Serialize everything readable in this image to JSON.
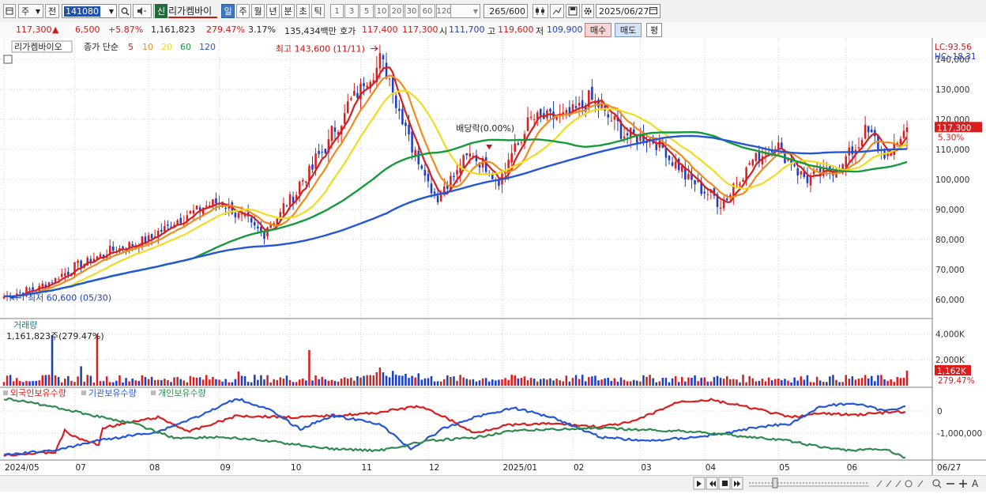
{
  "toolbar": {
    "market": "주",
    "scope": "전",
    "code": "141080",
    "stock_badge": "신",
    "stock_name": "리가켐바이",
    "periods": [
      "일",
      "주",
      "월",
      "년",
      "분",
      "초",
      "틱"
    ],
    "active_period": "일",
    "intervals": [
      "1",
      "3",
      "5",
      "10",
      "20",
      "30",
      "60",
      "120"
    ],
    "count": "265",
    "count_total": "/600",
    "date": "2025/06/27"
  },
  "quote": {
    "price": "117,300",
    "change_arrow": "▲",
    "change": "6,500",
    "change_pct": "+5.87%",
    "volume": "1,161,823",
    "volume_ratio": "279.47%",
    "turnover_pct": "3.17%",
    "amount": "135,434백만",
    "ask_label": "호가",
    "ask": "117,400",
    "bid": "117,300",
    "open_label": "시",
    "open": "111,700",
    "high_label": "고",
    "high": "119,600",
    "low_label": "저",
    "low": "109,900",
    "buy_label": "매수",
    "sell_label": "매도",
    "eval_label": "평"
  },
  "price_panel": {
    "name": "리가켐바이오",
    "ma_title": "종가 단순",
    "ma_labels": [
      {
        "label": "5",
        "color": "#d81e1e"
      },
      {
        "label": "10",
        "color": "#f08a1c"
      },
      {
        "label": "20",
        "color": "#f0dc1e"
      },
      {
        "label": "60",
        "color": "#169a3c"
      },
      {
        "label": "120",
        "color": "#2456d6"
      }
    ],
    "lc": "LC:93.56",
    "hc": "HC:-18.31",
    "high_annot": "최고 143,600 (11/11)",
    "low_annot": "최저 60,600 (05/30)",
    "div_annot": "배당락(0.00%)",
    "y_ticks": [
      "140,000",
      "130,000",
      "120,000",
      "110,000",
      "100,000",
      "90,000",
      "80,000",
      "70,000",
      "60,000"
    ],
    "current_label": "117,300",
    "current_pct": "5.30%"
  },
  "volume_panel": {
    "title": "거래량",
    "value": "1,161,823주(279.47%)",
    "y_ticks": [
      "4,000K",
      "2,000K"
    ],
    "current_label": "1,162K",
    "current_pct": "279.47%"
  },
  "holder_panel": {
    "legend": [
      {
        "label": "외국인보유수량",
        "color": "#d81e1e"
      },
      {
        "label": "기관보유수량",
        "color": "#2456d6"
      },
      {
        "label": "개인보유수량",
        "color": "#2e8a50"
      }
    ],
    "y_ticks": [
      "0",
      "-1,000,000"
    ]
  },
  "x_labels": [
    "2024/05",
    "07",
    "08",
    "09",
    "10",
    "11",
    "12",
    "2025/01",
    "02",
    "03",
    "04",
    "05",
    "06",
    "06/27"
  ],
  "colors": {
    "up": "#d81e1e",
    "down": "#1c3fbf",
    "ma5": "#d81e1e",
    "ma10": "#f08a1c",
    "ma20": "#f0dc1e",
    "ma60": "#169a3c",
    "ma120": "#2456d6",
    "foreign": "#d81e1e",
    "institution": "#2456d6",
    "individual": "#2e8a50"
  },
  "chart_data": {
    "type": "candlestick",
    "x_months": [
      "2024/05",
      "2024/06",
      "2024/07",
      "2024/08",
      "2024/09",
      "2024/10",
      "2024/11",
      "2024/12",
      "2025/01",
      "2025/02",
      "2025/03",
      "2025/04",
      "2025/05",
      "2025/06"
    ],
    "close_anchors": [
      {
        "date": "2024/05/30",
        "close": 61000
      },
      {
        "date": "2024/06/15",
        "close": 64000
      },
      {
        "date": "2024/07/01",
        "close": 71000
      },
      {
        "date": "2024/07/15",
        "close": 76000
      },
      {
        "date": "2024/08/01",
        "close": 80000
      },
      {
        "date": "2024/08/15",
        "close": 87000
      },
      {
        "date": "2024/09/01",
        "close": 93000
      },
      {
        "date": "2024/09/20",
        "close": 82000
      },
      {
        "date": "2024/10/01",
        "close": 92000
      },
      {
        "date": "2024/10/15",
        "close": 108000
      },
      {
        "date": "2024/11/01",
        "close": 130000
      },
      {
        "date": "2024/11/11",
        "close": 140000
      },
      {
        "date": "2024/11/25",
        "close": 110000
      },
      {
        "date": "2024/12/05",
        "close": 94000
      },
      {
        "date": "2024/12/20",
        "close": 109000
      },
      {
        "date": "2025/01/01",
        "close": 100000
      },
      {
        "date": "2025/01/15",
        "close": 120000
      },
      {
        "date": "2025/02/01",
        "close": 121000
      },
      {
        "date": "2025/02/10",
        "close": 127000
      },
      {
        "date": "2025/02/25",
        "close": 115000
      },
      {
        "date": "2025/03/10",
        "close": 113000
      },
      {
        "date": "2025/03/25",
        "close": 100000
      },
      {
        "date": "2025/04/08",
        "close": 92000
      },
      {
        "date": "2025/04/20",
        "close": 105000
      },
      {
        "date": "2025/05/01",
        "close": 112000
      },
      {
        "date": "2025/05/15",
        "close": 100000
      },
      {
        "date": "2025/05/30",
        "close": 104000
      },
      {
        "date": "2025/06/10",
        "close": 116000
      },
      {
        "date": "2025/06/20",
        "close": 107000
      },
      {
        "date": "2025/06/27",
        "close": 117300
      }
    ],
    "high": {
      "value": 143600,
      "date": "2024/11/11"
    },
    "low": {
      "value": 60600,
      "date": "2024/05/30"
    },
    "ylim": [
      55000,
      145000
    ],
    "volume_ylim_k": [
      0,
      5000
    ],
    "last_volume_k": 1162
  }
}
